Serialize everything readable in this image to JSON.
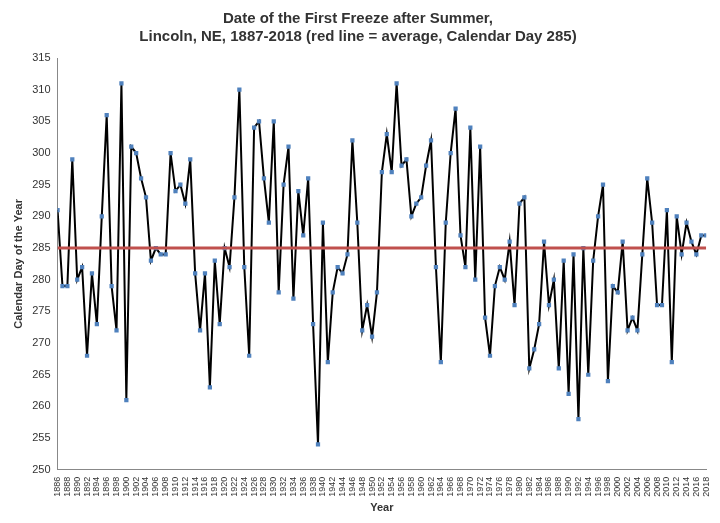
{
  "chart_data": {
    "type": "line",
    "title": [
      "Date of the First Freeze after Summer,",
      "Lincoln, NE, 1887-2018 (red line = average, Calendar Day 285)"
    ],
    "x_label": "Year",
    "y_label": "Calendar Day of the Year",
    "categories": [
      1886,
      null,
      1888,
      null,
      1890,
      null,
      1892,
      null,
      1894,
      null,
      1896,
      null,
      1898,
      null,
      1900,
      null,
      1902,
      null,
      1904,
      null,
      1906,
      null,
      1908,
      null,
      1910,
      null,
      1912,
      null,
      1914,
      null,
      1916,
      null,
      1918,
      null,
      1920,
      null,
      1922,
      null,
      1924,
      null,
      1926,
      null,
      1928,
      null,
      1930,
      null,
      1932,
      null,
      1934,
      null,
      1936,
      null,
      1938,
      null,
      1940,
      null,
      1942,
      null,
      1944,
      null,
      1946,
      null,
      1948,
      null,
      1950,
      null,
      1952,
      null,
      1954,
      null,
      1956,
      null,
      1958,
      null,
      1960,
      null,
      1962,
      null,
      1964,
      null,
      1966,
      null,
      1968,
      null,
      1970,
      null,
      1972,
      null,
      1974,
      null,
      1976,
      null,
      1978,
      null,
      1980,
      null,
      1982,
      null,
      1984,
      null,
      1986,
      null,
      1988,
      null,
      1990,
      null,
      1992,
      null,
      1994,
      null,
      1996,
      null,
      1998,
      null,
      2000,
      null,
      2002,
      null,
      2004,
      null,
      2006,
      null,
      2008,
      null,
      2010,
      null,
      2012,
      null,
      2014,
      null,
      2016,
      null,
      2018
    ],
    "series": [
      {
        "color": "#4f81bd",
        "marker": "square",
        "line_style": "solid",
        "values": [
          291,
          279,
          279,
          299,
          280,
          282,
          268,
          281,
          273,
          290,
          306,
          279,
          272,
          311,
          261,
          301,
          300,
          296,
          293,
          283,
          285,
          284,
          284,
          300,
          294,
          295,
          292,
          299,
          281,
          272,
          281,
          263,
          283,
          273,
          285,
          282,
          293,
          310,
          282,
          268,
          304,
          305,
          296,
          289,
          305,
          278,
          295,
          301,
          277,
          294,
          287,
          296,
          273,
          254,
          289,
          267,
          278,
          282,
          281,
          284,
          302,
          289,
          272,
          276,
          271,
          278,
          297,
          303,
          297,
          311,
          298,
          299,
          290,
          292,
          293,
          298,
          302,
          282,
          267,
          289,
          300,
          307,
          287,
          282,
          304,
          280,
          301,
          274,
          268,
          279,
          282,
          280,
          286,
          276,
          292,
          293,
          266,
          269,
          273,
          286,
          276,
          280,
          266,
          283,
          262,
          284,
          258,
          285,
          265,
          283,
          290,
          295,
          264,
          279,
          278,
          286,
          272,
          274,
          272,
          284,
          296,
          289,
          276,
          276,
          291,
          267,
          290,
          284,
          289,
          286,
          284,
          287,
          287
        ]
      },
      {
        "color": "#c0504d",
        "line_style": "solid",
        "values": [
          285,
          285,
          285,
          285,
          285,
          285,
          285,
          285,
          285,
          285,
          285,
          285,
          285,
          285,
          285,
          285,
          285,
          285,
          285,
          285,
          285,
          285,
          285,
          285,
          285,
          285,
          285,
          285,
          285,
          285,
          285,
          285,
          285,
          285,
          285,
          285,
          285,
          285,
          285,
          285,
          285,
          285,
          285,
          285,
          285,
          285,
          285,
          285,
          285,
          285,
          285,
          285,
          285,
          285,
          285,
          285,
          285,
          285,
          285,
          285,
          285,
          285,
          285,
          285,
          285,
          285,
          285,
          285,
          285,
          285,
          285,
          285,
          285,
          285,
          285,
          285,
          285,
          285,
          285,
          285,
          285,
          285,
          285,
          285,
          285,
          285,
          285,
          285,
          285,
          285,
          285,
          285,
          285,
          285,
          285,
          285,
          285,
          285,
          285,
          285,
          285,
          285,
          285,
          285,
          285,
          285,
          285,
          285,
          285,
          285,
          285,
          285,
          285,
          285,
          285,
          285,
          285,
          285,
          285,
          285,
          285,
          285,
          285,
          285,
          285,
          285,
          285,
          285,
          285,
          285,
          285,
          285,
          285
        ]
      }
    ],
    "ylim": [
      250,
      315
    ],
    "yticks": [
      250,
      255,
      260,
      265,
      270,
      275,
      280,
      285,
      290,
      295,
      300,
      305,
      310,
      315
    ],
    "grid": false
  }
}
